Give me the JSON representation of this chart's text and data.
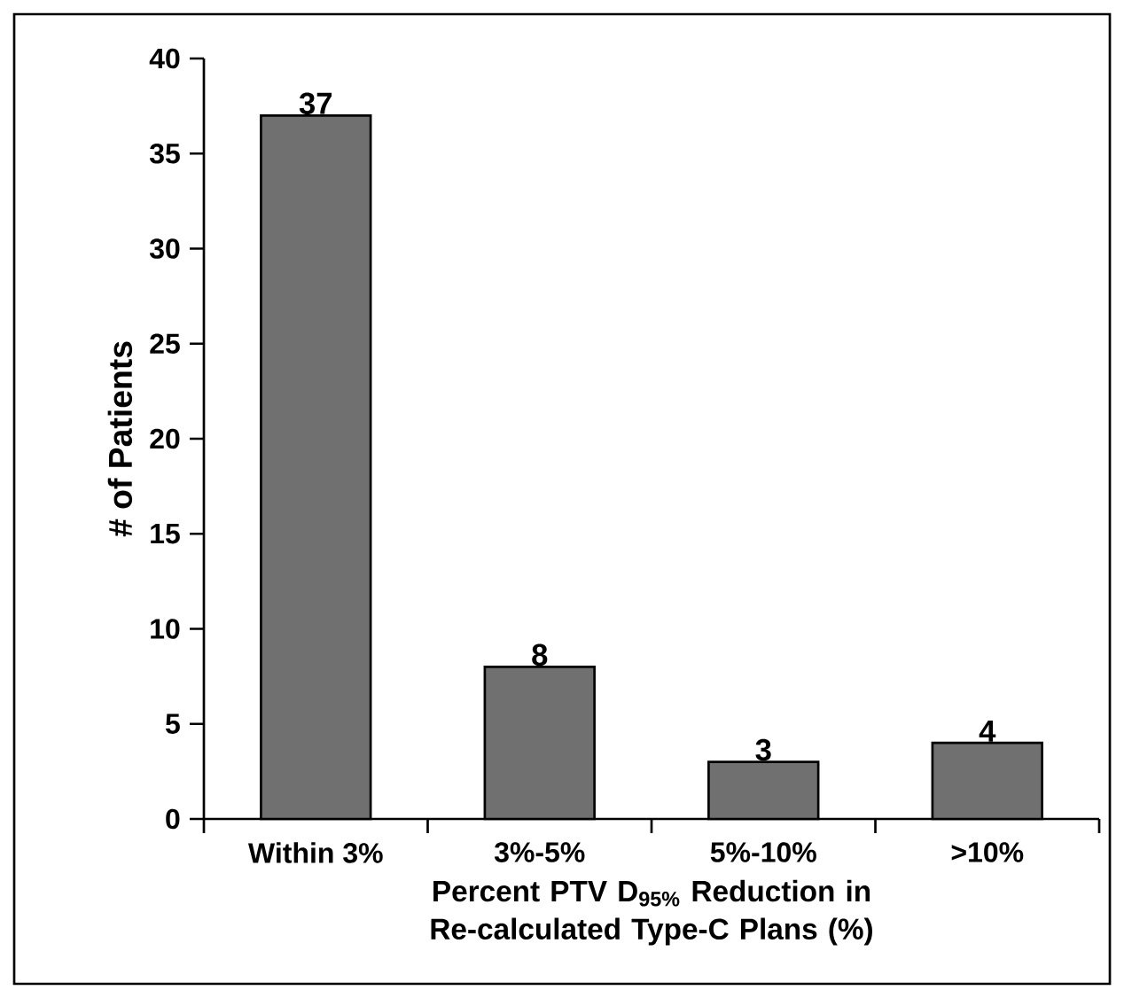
{
  "chart_data": {
    "type": "bar",
    "categories": [
      "Within 3%",
      "3%-5%",
      "5%-10%",
      ">10%"
    ],
    "values": [
      37,
      8,
      3,
      4
    ],
    "color": "#707070",
    "ylim": [
      0,
      40
    ],
    "yticks": [
      0,
      5,
      10,
      15,
      20,
      25,
      30,
      35,
      40
    ],
    "ylabel": "# of Patients",
    "xlabel": "Percent PTV D$_{95%}$ Reduction in Re-calculated Type-C Plans (%)",
    "data_labels": true,
    "grid": false
  }
}
